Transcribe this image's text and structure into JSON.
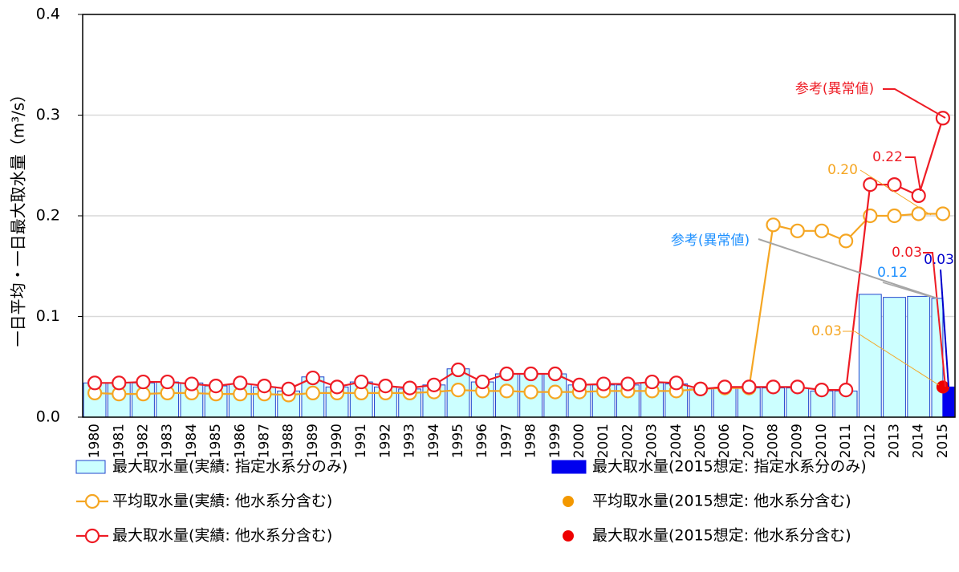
{
  "chart_data": {
    "type": "combo",
    "y_label": "一日平均・一日最大取水量（m³/s）",
    "categories": [
      "1980",
      "1981",
      "1982",
      "1983",
      "1984",
      "1985",
      "1986",
      "1987",
      "1988",
      "1989",
      "1990",
      "1991",
      "1992",
      "1993",
      "1994",
      "1995",
      "1996",
      "1997",
      "1998",
      "1999",
      "2000",
      "2001",
      "2002",
      "2003",
      "2004",
      "2005",
      "2006",
      "2007",
      "2008",
      "2009",
      "2010",
      "2011",
      "2012",
      "2013",
      "2014",
      "2015"
    ],
    "ylim": [
      0,
      0.4
    ],
    "yticks": [
      {
        "value": 0,
        "label": "0.0"
      },
      0.1,
      0.2,
      0.3,
      0.4
    ],
    "grid": true,
    "series": [
      {
        "name": "最大取水量(実績: 指定水系分のみ)",
        "kind": "bar",
        "color": "#ccffff",
        "edge": "#2244cc",
        "values": [
          0.034,
          0.034,
          0.034,
          0.035,
          0.034,
          0.031,
          0.033,
          0.03,
          0.026,
          0.04,
          0.03,
          0.035,
          0.03,
          0.028,
          0.032,
          0.048,
          0.035,
          0.043,
          0.043,
          0.043,
          0.032,
          0.032,
          0.032,
          0.034,
          0.033,
          0.028,
          0.029,
          0.029,
          0.029,
          0.029,
          0.026,
          0.026,
          0.122,
          0.119,
          0.12,
          0.118
        ]
      },
      {
        "name": "最大取水量(2015想定: 指定水系分のみ)",
        "kind": "bar",
        "color": "#0000ee",
        "edge": "#0000ee",
        "values": [
          null,
          null,
          null,
          null,
          null,
          null,
          null,
          null,
          null,
          null,
          null,
          null,
          null,
          null,
          null,
          null,
          null,
          null,
          null,
          null,
          null,
          null,
          null,
          null,
          null,
          null,
          null,
          null,
          null,
          null,
          null,
          null,
          null,
          null,
          null,
          0.03
        ]
      },
      {
        "name": "平均取水量(実績: 他水系分含む)",
        "kind": "line",
        "color": "#f5a623",
        "values": [
          0.024,
          0.023,
          0.023,
          0.024,
          0.024,
          0.023,
          0.023,
          0.023,
          0.022,
          0.024,
          0.024,
          0.024,
          0.024,
          0.024,
          0.025,
          0.027,
          0.026,
          0.026,
          0.025,
          0.025,
          0.025,
          0.026,
          0.026,
          0.026,
          0.026,
          0.028,
          0.029,
          0.029,
          0.191,
          0.185,
          0.185,
          0.175,
          0.2,
          0.2,
          0.202,
          0.202
        ]
      },
      {
        "name": "平均取水量(2015想定: 他水系分含む)",
        "kind": "point",
        "color": "#f39800",
        "values": [
          null,
          null,
          null,
          null,
          null,
          null,
          null,
          null,
          null,
          null,
          null,
          null,
          null,
          null,
          null,
          null,
          null,
          null,
          null,
          null,
          null,
          null,
          null,
          null,
          null,
          null,
          null,
          null,
          null,
          null,
          null,
          null,
          null,
          null,
          null,
          0.03
        ]
      },
      {
        "name": "最大取水量(実績: 他水系分含む)",
        "kind": "line",
        "color": "#ee1c25",
        "values": [
          0.034,
          0.034,
          0.035,
          0.035,
          0.033,
          0.031,
          0.034,
          0.031,
          0.028,
          0.039,
          0.03,
          0.035,
          0.031,
          0.029,
          0.032,
          0.047,
          0.035,
          0.043,
          0.043,
          0.043,
          0.032,
          0.033,
          0.033,
          0.035,
          0.034,
          0.028,
          0.03,
          0.03,
          0.03,
          0.03,
          0.027,
          0.027,
          0.231,
          0.231,
          0.22,
          0.297
        ]
      },
      {
        "name": "最大取水量(2015想定: 他水系分含む)",
        "kind": "point",
        "color": "#ee0000",
        "values": [
          null,
          null,
          null,
          null,
          null,
          null,
          null,
          null,
          null,
          null,
          null,
          null,
          null,
          null,
          null,
          null,
          null,
          null,
          null,
          null,
          null,
          null,
          null,
          null,
          null,
          null,
          null,
          null,
          null,
          null,
          null,
          null,
          null,
          null,
          null,
          0.03
        ]
      }
    ],
    "annotations": [
      {
        "text": "参考(異常値)",
        "color": "#ee1c25"
      },
      {
        "text": "0.22",
        "color": "#ee1c25"
      },
      {
        "text": "0.20",
        "color": "#f5a623"
      },
      {
        "text": "0.03",
        "color": "#ee1c25"
      },
      {
        "text": "参考(異常値)",
        "color": "#1e90ff"
      },
      {
        "text": "0.12",
        "color": "#1e90ff"
      },
      {
        "text": "0.03",
        "color": "#0000cc"
      },
      {
        "text": "0.03",
        "color": "#f5a623"
      }
    ]
  }
}
